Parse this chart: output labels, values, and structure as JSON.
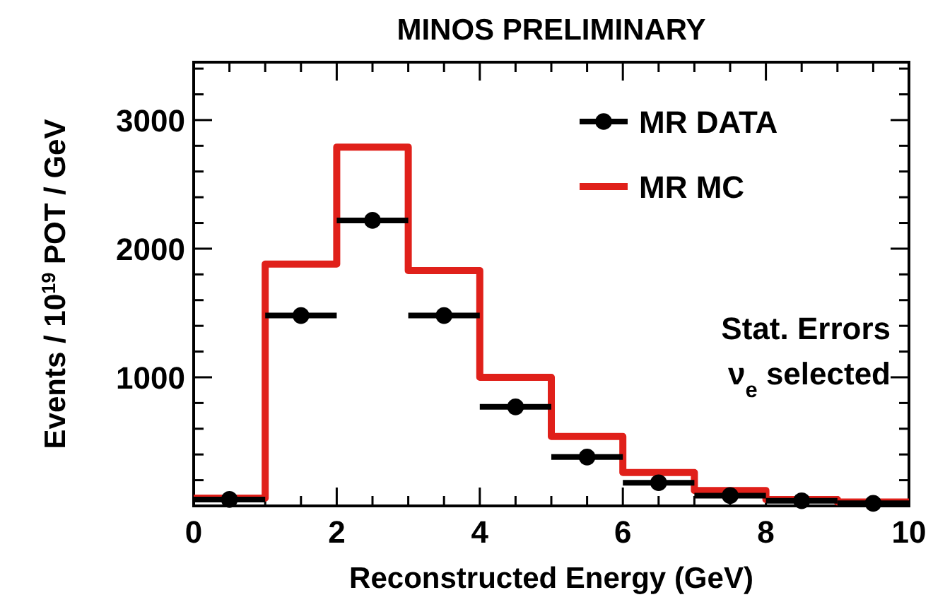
{
  "chart_data": {
    "type": "histogram",
    "title": "MINOS PRELIMINARY",
    "xlabel": "Reconstructed Energy (GeV)",
    "ylabel": "Events / 10$^{19}$ POT / GeV",
    "bins": [
      0,
      1,
      2,
      3,
      4,
      5,
      6,
      7,
      8,
      9,
      10
    ],
    "series": [
      {
        "name": "MR DATA",
        "type": "scatter",
        "color": "#000000",
        "x": [
          0.5,
          1.5,
          2.5,
          3.5,
          4.5,
          5.5,
          6.5,
          7.5,
          8.5,
          9.5
        ],
        "values": [
          50,
          1480,
          2220,
          1480,
          770,
          380,
          180,
          80,
          40,
          20
        ],
        "xerrors": [
          0.5,
          0.5,
          0.5,
          0.5,
          0.5,
          0.5,
          0.5,
          0.5,
          0.5,
          0.5
        ]
      },
      {
        "name": "MR MC",
        "type": "histogram",
        "color": "#e0201a",
        "values": [
          60,
          1880,
          2790,
          1830,
          1000,
          540,
          260,
          120,
          50,
          30
        ]
      }
    ],
    "xlim": [
      0,
      10
    ],
    "ylim": [
      0,
      3450
    ],
    "xticks": [
      0,
      {
        "value": 0.5,
        "label": null
      },
      {
        "value": 1,
        "label": null
      },
      {
        "value": 1.5,
        "label": null
      },
      2,
      {
        "value": 2.5,
        "label": null
      },
      {
        "value": 3,
        "label": null
      },
      {
        "value": 3.5,
        "label": null
      },
      4,
      {
        "value": 4.5,
        "label": null
      },
      {
        "value": 5,
        "label": null
      },
      {
        "value": 5.5,
        "label": null
      },
      6,
      {
        "value": 6.5,
        "label": null
      },
      {
        "value": 7,
        "label": null
      },
      {
        "value": 7.5,
        "label": null
      },
      8,
      {
        "value": 8.5,
        "label": null
      },
      {
        "value": 9,
        "label": null
      },
      {
        "value": 9.5,
        "label": null
      },
      10
    ],
    "yticks": [
      {
        "value": 200,
        "label": null
      },
      {
        "value": 400,
        "label": null
      },
      {
        "value": 600,
        "label": null
      },
      {
        "value": 800,
        "label": null
      },
      1000,
      {
        "value": 1200,
        "label": null
      },
      {
        "value": 1400,
        "label": null
      },
      {
        "value": 1600,
        "label": null
      },
      {
        "value": 1800,
        "label": null
      },
      2000,
      {
        "value": 2200,
        "label": null
      },
      {
        "value": 2400,
        "label": null
      },
      {
        "value": 2600,
        "label": null
      },
      {
        "value": 2800,
        "label": null
      },
      3000,
      {
        "value": 3200,
        "label": null
      },
      {
        "value": 3400,
        "label": null
      }
    ],
    "marker": "circle",
    "legend": "top right",
    "annotations": [
      "Stat. Errors",
      "ν$_{e}$ selected"
    ]
  }
}
